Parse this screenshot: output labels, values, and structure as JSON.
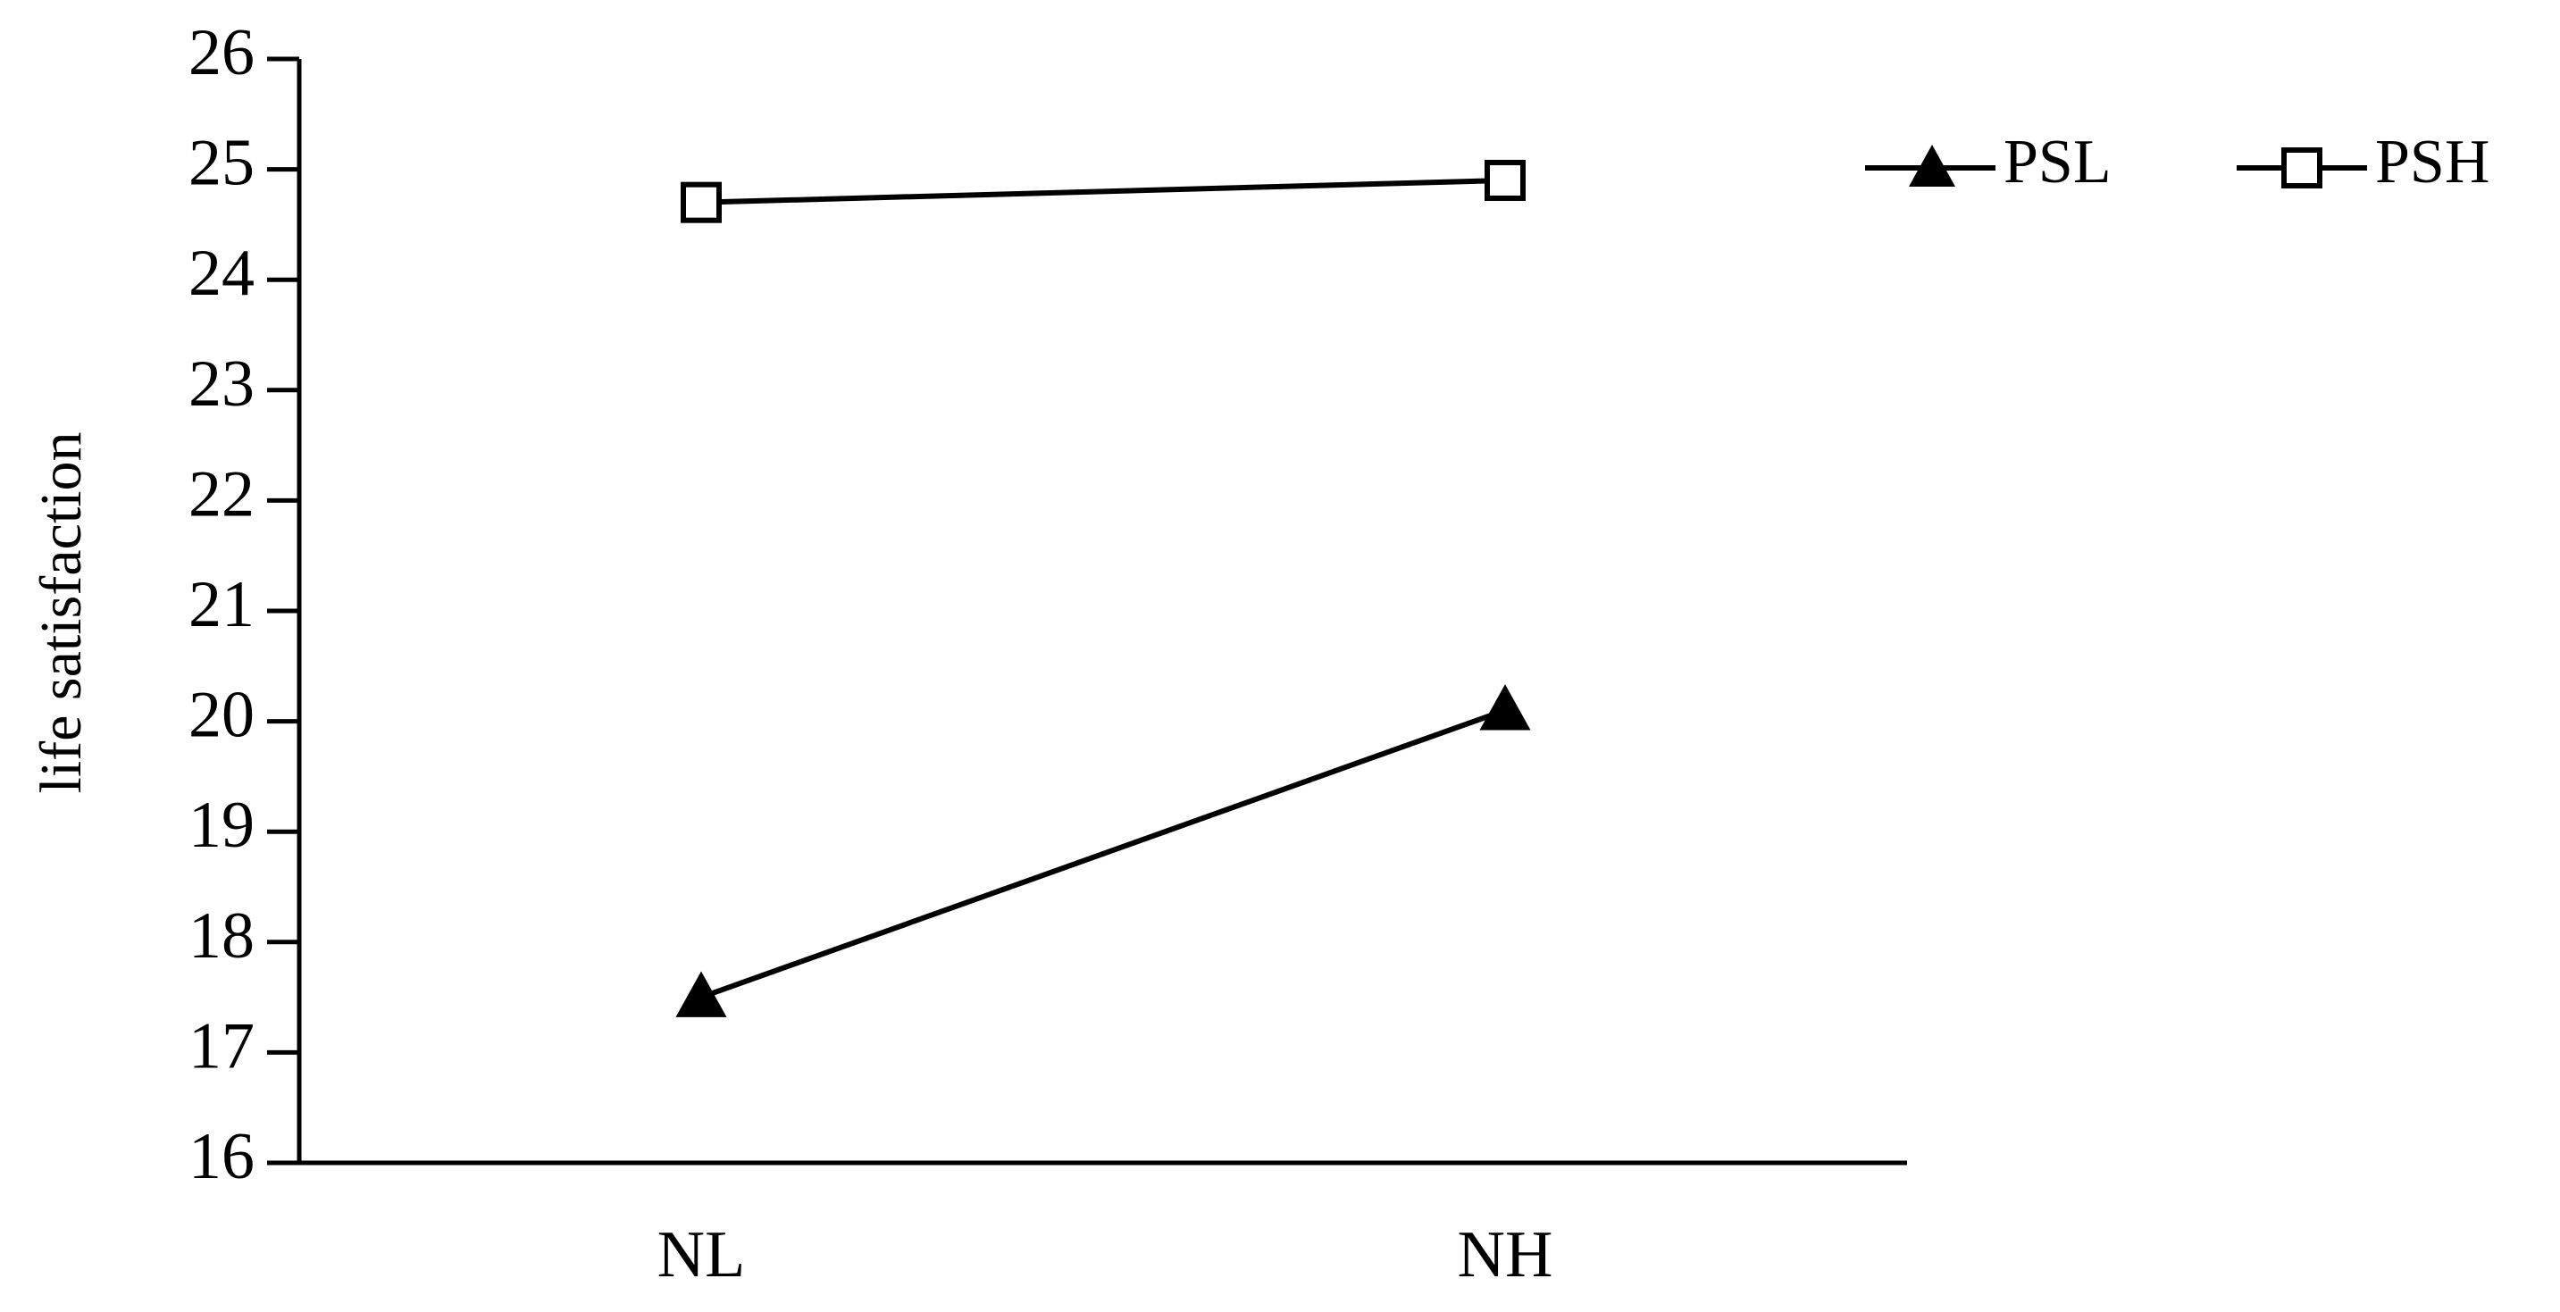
{
  "chart_data": {
    "type": "line",
    "y_label": "life satisfaction",
    "categories": [
      "NL",
      "NH"
    ],
    "series": [
      {
        "name": "PSL",
        "color": "#000000",
        "marker": "triangle",
        "values": [
          17.5,
          20.1
        ]
      },
      {
        "name": "PSH",
        "color": "#000000",
        "marker": "square",
        "values": [
          24.7,
          24.9
        ]
      }
    ],
    "ylim": [
      16,
      26
    ],
    "yticks": [
      16,
      17,
      18,
      19,
      20,
      21,
      22,
      23,
      24,
      25,
      26
    ],
    "grid": false,
    "legend": "top-right"
  }
}
